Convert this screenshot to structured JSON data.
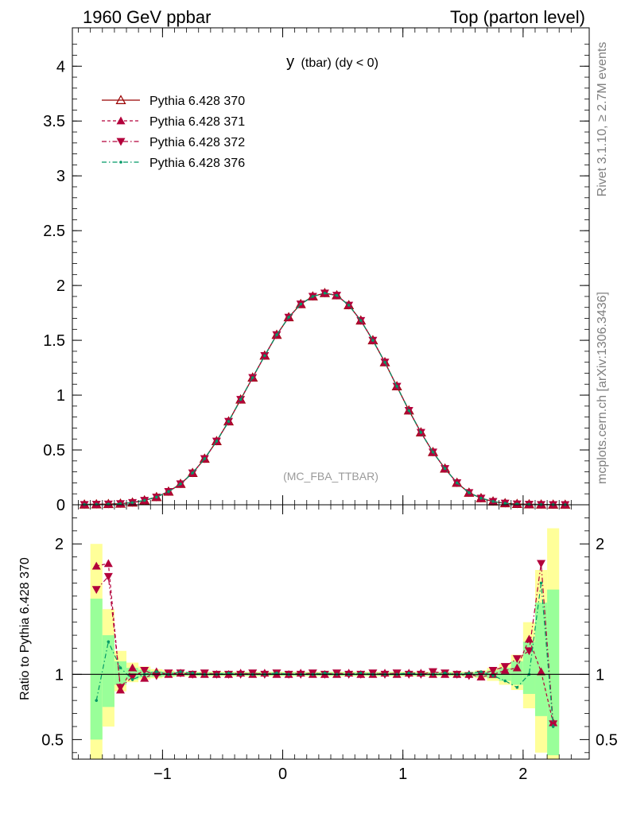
{
  "header": {
    "left": "1960 GeV ppbar",
    "right": "Top (parton level)"
  },
  "plot_title": {
    "main": "y",
    "sub": "(tbar) (dy < 0)"
  },
  "watermark": "(MC_FBA_TTBAR)",
  "side_labels": {
    "rivet": "Rivet 3.1.10, ≥ 2.7M events",
    "source": "mcplots.cern.ch [arXiv:1306.3436]"
  },
  "ratio_ylabel": "Ratio to Pythia 6.428 370",
  "chart_data": [
    {
      "type": "line",
      "panel": "main",
      "xlim": [
        -1.75,
        2.55
      ],
      "ylim": [
        0,
        4.35
      ],
      "yticks": [
        0,
        0.5,
        1,
        1.5,
        2,
        2.5,
        3,
        3.5,
        4
      ],
      "ytick_labels": [
        "0",
        "0.5",
        "1",
        "1.5",
        "2",
        "2.5",
        "3",
        "3.5",
        "4"
      ],
      "legend_position": "top-left",
      "x": [
        -1.65,
        -1.55,
        -1.45,
        -1.35,
        -1.25,
        -1.15,
        -1.05,
        -0.95,
        -0.85,
        -0.75,
        -0.65,
        -0.55,
        -0.45,
        -0.35,
        -0.25,
        -0.15,
        -0.05,
        0.05,
        0.15,
        0.25,
        0.35,
        0.45,
        0.55,
        0.65,
        0.75,
        0.85,
        0.95,
        1.05,
        1.15,
        1.25,
        1.35,
        1.45,
        1.55,
        1.65,
        1.75,
        1.85,
        1.95,
        2.05,
        2.15,
        2.25,
        2.35
      ],
      "series": [
        {
          "name": "Pythia 6.428 370",
          "color": "#990000",
          "dash": "solid",
          "marker": "triangle-open",
          "values": [
            0.002,
            0.004,
            0.006,
            0.01,
            0.02,
            0.04,
            0.07,
            0.12,
            0.19,
            0.29,
            0.42,
            0.58,
            0.76,
            0.96,
            1.16,
            1.36,
            1.55,
            1.71,
            1.83,
            1.9,
            1.93,
            1.91,
            1.82,
            1.68,
            1.5,
            1.3,
            1.08,
            0.86,
            0.66,
            0.48,
            0.33,
            0.2,
            0.11,
            0.06,
            0.03,
            0.014,
            0.007,
            0.004,
            0.002,
            0.001,
            0.0005
          ]
        },
        {
          "name": "Pythia 6.428 371",
          "color": "#b3003b",
          "dash": "dashed",
          "marker": "triangle-up",
          "values": [
            0.002,
            0.004,
            0.006,
            0.01,
            0.02,
            0.04,
            0.07,
            0.12,
            0.19,
            0.29,
            0.42,
            0.58,
            0.76,
            0.96,
            1.16,
            1.36,
            1.55,
            1.71,
            1.83,
            1.9,
            1.93,
            1.91,
            1.82,
            1.68,
            1.5,
            1.3,
            1.08,
            0.86,
            0.66,
            0.48,
            0.33,
            0.2,
            0.11,
            0.06,
            0.03,
            0.014,
            0.007,
            0.004,
            0.002,
            0.001,
            0.0005
          ]
        },
        {
          "name": "Pythia 6.428 372",
          "color": "#b3003b",
          "dash": "dashdot",
          "marker": "triangle-down",
          "values": [
            0.002,
            0.004,
            0.006,
            0.01,
            0.02,
            0.04,
            0.07,
            0.12,
            0.19,
            0.29,
            0.42,
            0.58,
            0.76,
            0.96,
            1.16,
            1.36,
            1.55,
            1.71,
            1.83,
            1.9,
            1.93,
            1.91,
            1.82,
            1.68,
            1.5,
            1.3,
            1.08,
            0.86,
            0.66,
            0.48,
            0.33,
            0.2,
            0.11,
            0.06,
            0.03,
            0.014,
            0.007,
            0.004,
            0.002,
            0.001,
            0.0005
          ]
        },
        {
          "name": "Pythia 6.428 376",
          "color": "#009966",
          "dash": "dashdot",
          "marker": "dot",
          "values": [
            0.002,
            0.004,
            0.006,
            0.01,
            0.02,
            0.04,
            0.07,
            0.12,
            0.19,
            0.29,
            0.42,
            0.58,
            0.76,
            0.96,
            1.16,
            1.36,
            1.55,
            1.71,
            1.83,
            1.9,
            1.93,
            1.91,
            1.82,
            1.68,
            1.5,
            1.3,
            1.08,
            0.86,
            0.66,
            0.48,
            0.33,
            0.2,
            0.11,
            0.06,
            0.03,
            0.014,
            0.007,
            0.004,
            0.002,
            0.001,
            0.0005
          ]
        }
      ]
    },
    {
      "type": "line",
      "panel": "ratio",
      "xlim": [
        -1.75,
        2.55
      ],
      "ylim": [
        0.35,
        2.3
      ],
      "yticks": [
        0.5,
        1,
        2
      ],
      "ytick_labels": [
        "0.5",
        "1",
        "2"
      ],
      "xticks": [
        -1,
        0,
        1,
        2
      ],
      "xtick_labels": [
        "−1",
        "0",
        "1",
        "2"
      ],
      "reference_line": 1,
      "bands": {
        "edges": [
          -1.6,
          -1.5,
          -1.4,
          -1.3,
          -1.2,
          -1.1,
          -1.0,
          -0.9,
          -0.8,
          -0.7,
          -0.6,
          -0.5,
          -0.4,
          -0.3,
          -0.2,
          -0.1,
          0.0,
          0.1,
          0.2,
          0.3,
          0.4,
          0.5,
          0.6,
          0.7,
          0.8,
          0.9,
          1.0,
          1.1,
          1.2,
          1.3,
          1.4,
          1.5,
          1.6,
          1.7,
          1.8,
          1.9,
          2.0,
          2.1,
          2.2,
          2.3
        ],
        "yellow_low": [
          0.35,
          0.6,
          0.87,
          0.94,
          0.96,
          0.97,
          0.98,
          0.985,
          0.985,
          0.985,
          0.985,
          0.985,
          0.985,
          0.985,
          0.985,
          0.985,
          0.985,
          0.985,
          0.985,
          0.985,
          0.985,
          0.985,
          0.985,
          0.985,
          0.985,
          0.985,
          0.985,
          0.985,
          0.985,
          0.985,
          0.985,
          0.98,
          0.97,
          0.95,
          0.92,
          0.88,
          0.74,
          0.4,
          0.35
        ],
        "yellow_high": [
          2.0,
          1.5,
          1.18,
          1.09,
          1.06,
          1.04,
          1.03,
          1.02,
          1.02,
          1.02,
          1.02,
          1.02,
          1.02,
          1.02,
          1.02,
          1.02,
          1.02,
          1.02,
          1.02,
          1.02,
          1.02,
          1.02,
          1.02,
          1.02,
          1.02,
          1.02,
          1.02,
          1.02,
          1.02,
          1.02,
          1.02,
          1.02,
          1.03,
          1.05,
          1.08,
          1.15,
          1.4,
          1.8,
          2.12
        ],
        "green_low": [
          0.5,
          0.75,
          0.92,
          0.96,
          0.975,
          0.98,
          0.985,
          0.99,
          0.99,
          0.99,
          0.99,
          0.99,
          0.99,
          0.99,
          0.99,
          0.99,
          0.99,
          0.99,
          0.99,
          0.99,
          0.99,
          0.99,
          0.99,
          0.99,
          0.99,
          0.99,
          0.99,
          0.99,
          0.99,
          0.99,
          0.99,
          0.985,
          0.98,
          0.97,
          0.95,
          0.92,
          0.85,
          0.68,
          0.38
        ],
        "green_high": [
          1.58,
          1.3,
          1.1,
          1.05,
          1.035,
          1.025,
          1.02,
          1.015,
          1.015,
          1.015,
          1.015,
          1.015,
          1.015,
          1.015,
          1.015,
          1.015,
          1.015,
          1.015,
          1.015,
          1.015,
          1.015,
          1.015,
          1.015,
          1.015,
          1.015,
          1.015,
          1.015,
          1.015,
          1.015,
          1.015,
          1.015,
          1.015,
          1.02,
          1.03,
          1.05,
          1.1,
          1.25,
          1.55,
          1.65
        ]
      },
      "x": [
        -1.55,
        -1.45,
        -1.35,
        -1.25,
        -1.15,
        -1.05,
        -0.95,
        -0.85,
        -0.75,
        -0.65,
        -0.55,
        -0.45,
        -0.35,
        -0.25,
        -0.15,
        -0.05,
        0.05,
        0.15,
        0.25,
        0.35,
        0.45,
        0.55,
        0.65,
        0.75,
        0.85,
        0.95,
        1.05,
        1.15,
        1.25,
        1.35,
        1.45,
        1.55,
        1.65,
        1.75,
        1.85,
        1.95,
        2.05,
        2.15,
        2.25
      ],
      "series": [
        {
          "name": "Pythia 6.428 371",
          "color": "#b3003b",
          "dash": "dashed",
          "marker": "triangle-up",
          "values": [
            1.83,
            1.85,
            0.88,
            1.05,
            0.97,
            1.02,
            1.0,
            1.01,
            1.0,
            1.0,
            1.0,
            1.0,
            1.01,
            1.0,
            1.01,
            1.0,
            1.0,
            1.01,
            1.0,
            1.0,
            1.0,
            1.01,
            1.0,
            1.0,
            1.01,
            1.0,
            1.01,
            1.01,
            1.0,
            1.0,
            1.0,
            1.0,
            0.98,
            1.0,
            1.03,
            1.05,
            1.27,
            1.02,
            0.63
          ]
        },
        {
          "name": "Pythia 6.428 372",
          "color": "#b3003b",
          "dash": "dashdot",
          "marker": "triangle-down",
          "values": [
            1.65,
            1.75,
            0.9,
            0.98,
            1.03,
            0.99,
            1.01,
            1.01,
            1.0,
            1.01,
            1.0,
            1.0,
            1.0,
            1.01,
            1.0,
            1.01,
            1.0,
            1.0,
            1.01,
            1.0,
            1.01,
            1.0,
            1.0,
            1.01,
            1.0,
            1.01,
            1.0,
            1.0,
            1.02,
            1.01,
            1.0,
            0.99,
            1.0,
            1.03,
            1.06,
            1.12,
            1.18,
            1.85,
            0.62
          ]
        },
        {
          "name": "Pythia 6.428 376",
          "color": "#009966",
          "dash": "dashdot",
          "marker": "dot",
          "values": [
            0.8,
            1.25,
            1.05,
            0.96,
            1.0,
            1.02,
            1.0,
            1.02,
            1.01,
            1.0,
            1.0,
            1.01,
            1.0,
            1.0,
            1.0,
            1.01,
            1.0,
            1.0,
            1.0,
            1.01,
            1.0,
            1.0,
            1.01,
            1.0,
            1.0,
            1.0,
            1.01,
            1.0,
            1.0,
            1.01,
            1.0,
            1.01,
            1.02,
            0.99,
            0.95,
            0.9,
            1.0,
            1.7,
            0.6
          ]
        }
      ]
    }
  ]
}
